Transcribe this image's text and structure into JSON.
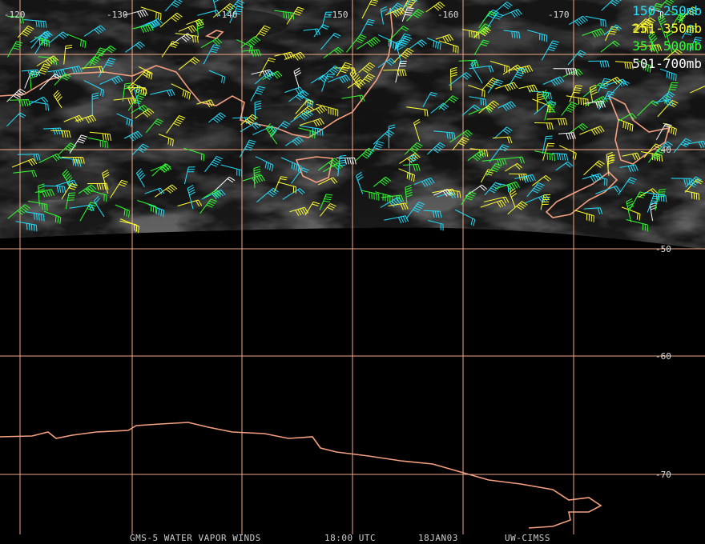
{
  "legend": [
    {
      "label": "150-250mb",
      "color": "#22e0ff"
    },
    {
      "label": "251-350mb",
      "color": "#ffff30"
    },
    {
      "label": "351-500mb",
      "color": "#30ff30"
    },
    {
      "label": "501-700mb",
      "color": "#ffffff"
    }
  ],
  "longitude_labels": [
    "-120",
    "-130",
    "-140",
    "-150",
    "-160",
    "-170"
  ],
  "latitude_labels": [
    "-40",
    "-50",
    "-60",
    "-70"
  ],
  "footer": [
    "GMS-5 WATER VAPOR WINDS",
    "18:00 UTC",
    "18JAN03",
    "UW-CIMSS"
  ]
}
